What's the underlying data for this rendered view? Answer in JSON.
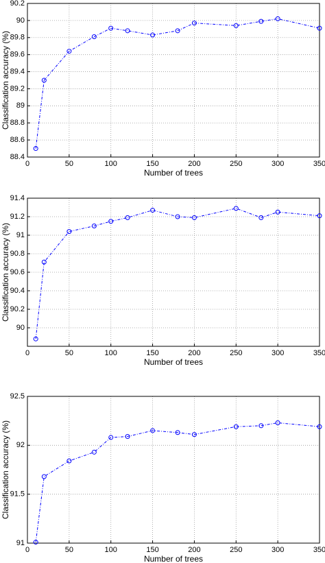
{
  "chart_data": [
    {
      "type": "line",
      "xlabel": "Number of trees",
      "ylabel": "Classification accuracy (%)",
      "x": [
        10,
        20,
        50,
        80,
        100,
        120,
        150,
        180,
        200,
        250,
        280,
        300,
        350
      ],
      "values": [
        88.5,
        89.3,
        89.64,
        89.81,
        89.91,
        89.88,
        89.83,
        89.88,
        89.97,
        89.94,
        89.99,
        90.02,
        89.91
      ],
      "color": "#0000ff",
      "xlim": [
        0,
        350
      ],
      "xticks": [
        0,
        50,
        100,
        150,
        200,
        250,
        300,
        350
      ],
      "ylim": [
        88.4,
        90.2
      ],
      "yticks": [
        88.4,
        88.6,
        88.8,
        89,
        89.2,
        89.4,
        89.6,
        89.8,
        90,
        90.2
      ],
      "grid": true
    },
    {
      "type": "line",
      "xlabel": "Number of trees",
      "ylabel": "Classification accuracy (%)",
      "x": [
        10,
        20,
        50,
        80,
        100,
        120,
        150,
        180,
        200,
        250,
        280,
        300,
        350
      ],
      "values": [
        89.88,
        90.71,
        91.04,
        91.1,
        91.15,
        91.19,
        91.27,
        91.2,
        91.19,
        91.29,
        91.19,
        91.25,
        91.21
      ],
      "color": "#0000ff",
      "xlim": [
        0,
        350
      ],
      "xticks": [
        0,
        50,
        100,
        150,
        200,
        250,
        300,
        350
      ],
      "ylim": [
        89.8,
        91.4
      ],
      "yticks": [
        90,
        90.2,
        90.4,
        90.6,
        90.8,
        91,
        91.2,
        91.4
      ],
      "grid": true
    },
    {
      "type": "line",
      "xlabel": "Number of trees",
      "ylabel": "Classification accuracy (%)",
      "x": [
        10,
        20,
        50,
        80,
        100,
        120,
        150,
        180,
        200,
        250,
        280,
        300,
        350
      ],
      "values": [
        91.01,
        91.68,
        91.84,
        91.93,
        92.08,
        92.09,
        92.15,
        92.13,
        92.11,
        92.19,
        92.2,
        92.23,
        92.19
      ],
      "color": "#0000ff",
      "xlim": [
        0,
        350
      ],
      "xticks": [
        0,
        50,
        100,
        150,
        200,
        250,
        300,
        350
      ],
      "ylim": [
        91,
        92.5
      ],
      "yticks": [
        91,
        91.5,
        92,
        92.5
      ],
      "grid": true
    }
  ]
}
